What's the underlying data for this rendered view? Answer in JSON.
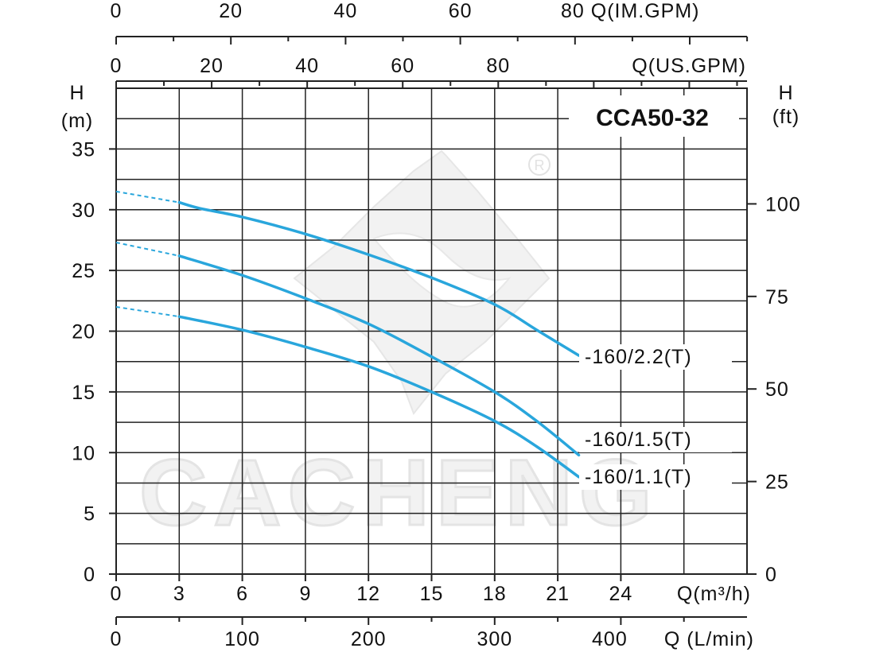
{
  "chart_data": {
    "type": "line",
    "title": "CCA50-32",
    "xlabel": "Q(m³/h)",
    "ylabel": "H (m)",
    "xlim": [
      0,
      30
    ],
    "ylim": [
      0,
      40
    ],
    "x_ticks": [
      "0",
      "3",
      "6",
      "9",
      "12",
      "15",
      "18",
      "21",
      "24"
    ],
    "y_ticks": [
      "0",
      "5",
      "10",
      "15",
      "20",
      "25",
      "30",
      "35"
    ],
    "grid": true,
    "secondary_axes": {
      "right": {
        "label_line1": "H",
        "label_line2": "(ft)",
        "unit": "ft",
        "ticks": [
          {
            "value": 0,
            "label": "0"
          },
          {
            "value": 25,
            "label": "25"
          },
          {
            "value": 50,
            "label": "50"
          },
          {
            "value": 75,
            "label": "75"
          },
          {
            "value": 100,
            "label": "100"
          }
        ]
      },
      "bottom": {
        "unit": "L/min",
        "label": "Q (L/min)",
        "ticks": [
          {
            "value": 0,
            "label": "0"
          },
          {
            "value": 100,
            "label": "100"
          },
          {
            "value": 200,
            "label": "200"
          },
          {
            "value": 300,
            "label": "300"
          },
          {
            "value": 400,
            "label": "400"
          }
        ]
      },
      "top_us": {
        "unit": "US.GPM",
        "label": "Q(US.GPM)",
        "ticks": [
          {
            "value": 0,
            "label": "0"
          },
          {
            "value": 20,
            "label": "20"
          },
          {
            "value": 40,
            "label": "40"
          },
          {
            "value": 60,
            "label": "60"
          },
          {
            "value": 80,
            "label": "80"
          }
        ]
      },
      "top_im": {
        "unit": "IM.GPM",
        "label": "Q(IM.GPM)",
        "ticks": [
          {
            "value": 0,
            "label": "0"
          },
          {
            "value": 20,
            "label": "20"
          },
          {
            "value": 40,
            "label": "40"
          },
          {
            "value": 60,
            "label": "60"
          },
          {
            "value": 80,
            "label": "80"
          }
        ]
      }
    },
    "left_label_line1": "H",
    "left_label_line2": "(m)",
    "series": [
      {
        "name": "-160/2.2(T)",
        "color": "#29a6dc",
        "x": [
          0,
          3,
          4,
          6,
          9,
          12,
          15,
          18,
          20,
          22
        ],
        "y": [
          31.5,
          30.6,
          30.1,
          29.4,
          28.0,
          26.3,
          24.4,
          22.2,
          20.1,
          18.0
        ]
      },
      {
        "name": "-160/1.5(T)",
        "color": "#29a6dc",
        "x": [
          0,
          3,
          6,
          9,
          12,
          15,
          18,
          20,
          22
        ],
        "y": [
          27.3,
          26.2,
          24.6,
          22.7,
          20.6,
          17.9,
          15.0,
          12.6,
          9.8
        ]
      },
      {
        "name": "-160/1.1(T)",
        "color": "#29a6dc",
        "x": [
          0,
          3,
          6,
          9,
          12,
          15,
          18,
          20,
          22
        ],
        "y": [
          22.0,
          21.2,
          20.1,
          18.7,
          17.1,
          15.0,
          12.6,
          10.5,
          8.0
        ]
      }
    ],
    "dashed_until_x": 3,
    "watermark": "CACHENG"
  }
}
